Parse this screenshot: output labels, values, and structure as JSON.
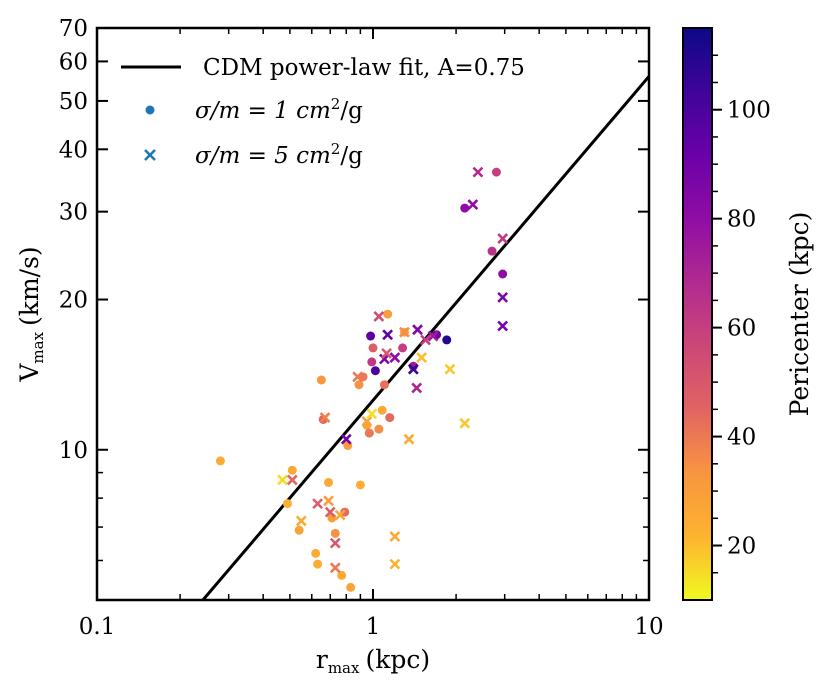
{
  "chart_data": {
    "type": "scatter",
    "xscale": "log",
    "yscale": "log",
    "xlim": [
      0.1,
      10
    ],
    "ylim": [
      5,
      70
    ],
    "xlabel": "r",
    "xlabel_sub": "max",
    "xlabel_unit": "(kpc)",
    "ylabel": "V",
    "ylabel_sub": "max",
    "ylabel_unit": "(km/s)",
    "xticks": [
      {
        "value": 0.1,
        "label": "0.1"
      },
      {
        "value": 1,
        "label": "1"
      },
      {
        "value": 10,
        "label": "10"
      }
    ],
    "yticks": [
      {
        "value": 10,
        "label": "10"
      },
      {
        "value": 20,
        "label": "20"
      },
      {
        "value": 30,
        "label": "30"
      },
      {
        "value": 40,
        "label": "40"
      },
      {
        "value": 50,
        "label": "50"
      },
      {
        "value": 60,
        "label": "60"
      },
      {
        "value": 70,
        "label": "70"
      }
    ],
    "fit_line": {
      "label": "CDM power-law fit, A=0.75",
      "points": [
        [
          0.242,
          5
        ],
        [
          10,
          56
        ]
      ],
      "color": "#000000"
    },
    "legend": {
      "placement": "top-left",
      "entries": [
        {
          "marker": "dot",
          "label_prefix": "σ/m = 1 cm",
          "label_sup": "2",
          "label_suffix": "/g",
          "color": "#1f77b4"
        },
        {
          "marker": "x",
          "label_prefix": "σ/m = 5 cm",
          "label_sup": "2",
          "label_suffix": "/g",
          "color": "#1f77b4"
        }
      ]
    },
    "colorbar": {
      "label": "Pericenter (kpc)",
      "colormap": "plasma_r",
      "range": [
        10,
        115
      ],
      "ticks": [
        20,
        40,
        60,
        80,
        100
      ],
      "stops": [
        "#f0f921",
        "#fdb32f",
        "#f89540",
        "#e16462",
        "#cc4778",
        "#b12a90",
        "#8f0da4",
        "#6a00a8",
        "#3f049a",
        "#0d0887"
      ]
    },
    "series": [
      {
        "name": "σ/m = 1 cm²/g",
        "marker": "dot",
        "points": [
          [
            0.28,
            9.5,
            25
          ],
          [
            0.49,
            7.8,
            22
          ],
          [
            0.51,
            9.1,
            25
          ],
          [
            0.54,
            6.9,
            28
          ],
          [
            0.62,
            6.2,
            25
          ],
          [
            0.63,
            5.9,
            24
          ],
          [
            0.65,
            13.8,
            32
          ],
          [
            0.66,
            11.5,
            45
          ],
          [
            0.69,
            8.6,
            26
          ],
          [
            0.71,
            7.3,
            30
          ],
          [
            0.73,
            6.8,
            34
          ],
          [
            0.77,
            5.6,
            25
          ],
          [
            0.79,
            7.5,
            43
          ],
          [
            0.81,
            10.2,
            30
          ],
          [
            0.83,
            5.3,
            28
          ],
          [
            0.89,
            13.5,
            34
          ],
          [
            0.9,
            8.5,
            24
          ],
          [
            0.92,
            14.0,
            40
          ],
          [
            0.95,
            11.2,
            28
          ],
          [
            0.97,
            10.8,
            40
          ],
          [
            0.98,
            16.9,
            95
          ],
          [
            0.99,
            15.0,
            62
          ],
          [
            1.0,
            16.0,
            48
          ],
          [
            1.02,
            14.4,
            100
          ],
          [
            1.05,
            11.0,
            35
          ],
          [
            1.08,
            12.0,
            26
          ],
          [
            1.1,
            13.5,
            42
          ],
          [
            1.13,
            18.7,
            30
          ],
          [
            1.15,
            11.6,
            44
          ],
          [
            1.28,
            16.0,
            60
          ],
          [
            1.3,
            17.2,
            28
          ],
          [
            1.4,
            14.7,
            75
          ],
          [
            1.7,
            17.0,
            92
          ],
          [
            1.85,
            16.6,
            110
          ],
          [
            2.15,
            30.5,
            80
          ],
          [
            2.7,
            25.0,
            65
          ],
          [
            2.8,
            36.0,
            60
          ],
          [
            2.95,
            22.5,
            80
          ]
        ]
      },
      {
        "name": "σ/m = 5 cm²/g",
        "marker": "x",
        "points": [
          [
            0.47,
            8.7,
            15
          ],
          [
            0.51,
            8.7,
            45
          ],
          [
            0.55,
            7.2,
            25
          ],
          [
            0.63,
            7.8,
            48
          ],
          [
            0.67,
            11.6,
            38
          ],
          [
            0.69,
            7.9,
            30
          ],
          [
            0.7,
            7.5,
            48
          ],
          [
            0.73,
            6.5,
            50
          ],
          [
            0.73,
            5.8,
            40
          ],
          [
            0.76,
            7.4,
            25
          ],
          [
            0.8,
            10.5,
            88
          ],
          [
            0.88,
            14.0,
            40
          ],
          [
            0.95,
            11.4,
            28
          ],
          [
            0.99,
            11.8,
            15
          ],
          [
            1.05,
            18.5,
            55
          ],
          [
            1.1,
            15.2,
            85
          ],
          [
            1.12,
            15.6,
            50
          ],
          [
            1.13,
            17.0,
            95
          ],
          [
            1.2,
            15.3,
            80
          ],
          [
            1.2,
            6.7,
            25
          ],
          [
            1.2,
            5.9,
            22
          ],
          [
            1.3,
            17.2,
            35
          ],
          [
            1.35,
            10.5,
            25
          ],
          [
            1.4,
            14.5,
            105
          ],
          [
            1.44,
            13.3,
            70
          ],
          [
            1.45,
            17.4,
            85
          ],
          [
            1.5,
            15.3,
            20
          ],
          [
            1.55,
            16.6,
            60
          ],
          [
            1.65,
            16.9,
            75
          ],
          [
            1.9,
            14.5,
            18
          ],
          [
            2.15,
            11.3,
            18
          ],
          [
            2.3,
            31.0,
            80
          ],
          [
            2.4,
            36.0,
            68
          ],
          [
            2.95,
            26.5,
            62
          ],
          [
            2.95,
            20.2,
            85
          ],
          [
            2.95,
            17.7,
            88
          ]
        ]
      }
    ]
  }
}
